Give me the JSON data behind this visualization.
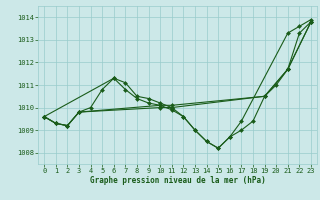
{
  "background_color": "#cce8e8",
  "grid_color": "#99cccc",
  "line_color": "#1a5c1a",
  "marker_color": "#1a5c1a",
  "xlabel": "Graphe pression niveau de la mer (hPa)",
  "ylim": [
    1007.5,
    1014.5
  ],
  "xlim": [
    -0.5,
    23.5
  ],
  "yticks": [
    1008,
    1009,
    1010,
    1011,
    1012,
    1013,
    1014
  ],
  "xticks": [
    0,
    1,
    2,
    3,
    4,
    5,
    6,
    7,
    8,
    9,
    10,
    11,
    12,
    13,
    14,
    15,
    16,
    17,
    18,
    19,
    20,
    21,
    22,
    23
  ],
  "series": [
    {
      "x": [
        0,
        1,
        2,
        3,
        10,
        11,
        19,
        21,
        23
      ],
      "y": [
        1009.6,
        1009.3,
        1009.2,
        1009.8,
        1010.1,
        1010.1,
        1010.5,
        1011.7,
        1013.8
      ]
    },
    {
      "x": [
        0,
        1,
        2,
        3,
        10,
        11,
        19,
        21,
        23
      ],
      "y": [
        1009.6,
        1009.3,
        1009.2,
        1009.8,
        1010.0,
        1010.0,
        1010.5,
        1011.7,
        1013.8
      ]
    },
    {
      "x": [
        0,
        1,
        2,
        3,
        4,
        5,
        6,
        7,
        8,
        9,
        10,
        11,
        12,
        13,
        14,
        15,
        16,
        17,
        18,
        19,
        20,
        21,
        22,
        23
      ],
      "y": [
        1009.6,
        1009.3,
        1009.2,
        1009.8,
        1010.0,
        1010.8,
        1011.3,
        1010.8,
        1010.4,
        1010.2,
        1010.1,
        1009.9,
        1009.6,
        1009.0,
        1008.5,
        1008.2,
        1008.7,
        1009.0,
        1009.4,
        1010.5,
        1011.0,
        1011.7,
        1013.3,
        1013.8
      ]
    },
    {
      "x": [
        0,
        6,
        7,
        8,
        9,
        10,
        11,
        12,
        13,
        14,
        15,
        16,
        17,
        21,
        22,
        23
      ],
      "y": [
        1009.6,
        1011.3,
        1011.1,
        1010.5,
        1010.4,
        1010.2,
        1010.0,
        1009.6,
        1009.0,
        1008.5,
        1008.2,
        1008.7,
        1009.4,
        1013.3,
        1013.6,
        1013.9
      ]
    }
  ],
  "figsize": [
    3.2,
    2.0
  ],
  "dpi": 100
}
